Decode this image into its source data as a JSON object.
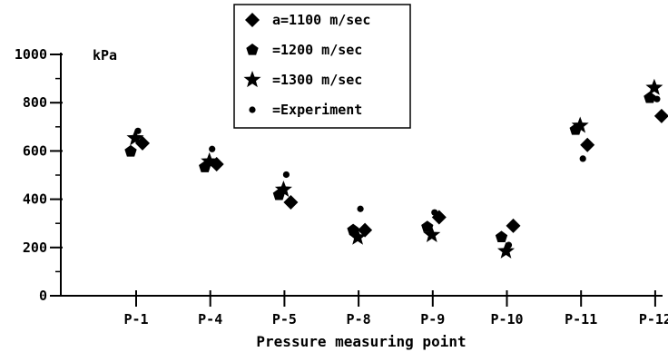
{
  "chart_data": {
    "type": "scatter",
    "title": "",
    "xlabel": "Pressure measuring point",
    "ylabel": "",
    "unit_label": "kPa",
    "categories": [
      "P-1",
      "P-4",
      "P-5",
      "P-8",
      "P-9",
      "P-10",
      "P-11",
      "P-12"
    ],
    "y_ticks": [
      "0",
      "200",
      "400",
      "600",
      "800",
      "1000"
    ],
    "ylim": [
      0,
      1000
    ],
    "grid": false,
    "legend_position": "top-center",
    "series": [
      {
        "name": "a=1100 m/sec",
        "marker": "diamond",
        "values": [
          632,
          545,
          387,
          272,
          325,
          290,
          625,
          745
        ]
      },
      {
        "name": "=1200 m/sec",
        "marker": "pentagon",
        "values": [
          598,
          533,
          418,
          272,
          285,
          243,
          688,
          820
        ]
      },
      {
        "name": "=1300 m/sec",
        "marker": "star",
        "values": [
          653,
          557,
          440,
          242,
          252,
          185,
          705,
          862
        ]
      },
      {
        "name": "=Experiment",
        "marker": "dot",
        "values": [
          683,
          608,
          502,
          360,
          345,
          210,
          568,
          815
        ]
      }
    ]
  }
}
